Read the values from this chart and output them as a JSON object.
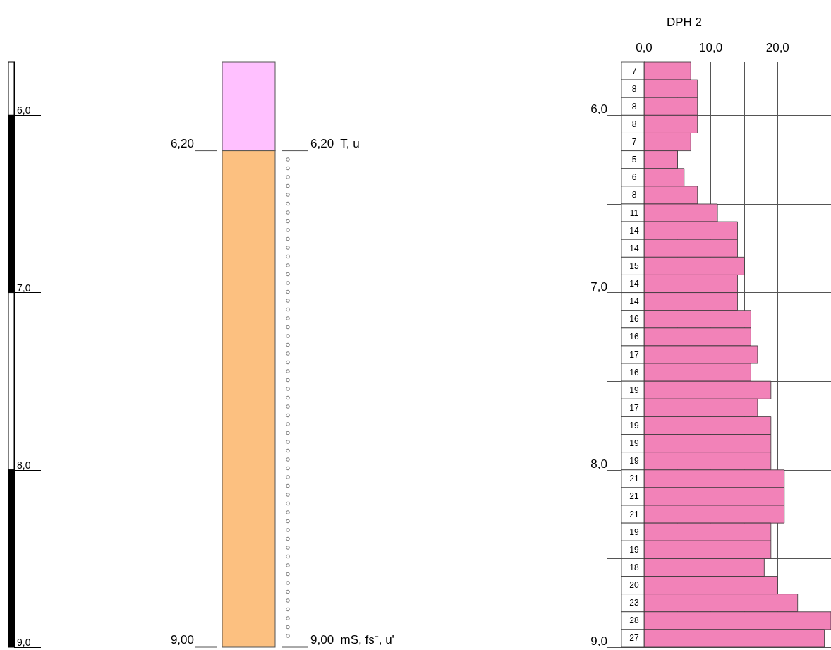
{
  "chart_data": {
    "type": "histogram",
    "orientation": "horizontal",
    "title": "DPH 2",
    "color": "#f282b8",
    "data_labels": true,
    "grid": true,
    "bins": [
      5.7,
      5.8,
      5.9,
      6.0,
      6.1,
      6.2,
      6.3,
      6.4,
      6.5,
      6.6,
      6.7,
      6.8,
      6.9,
      7.0,
      7.1,
      7.2,
      7.3,
      7.4,
      7.5,
      7.6,
      7.7,
      7.8,
      7.9,
      8.0,
      8.1,
      8.2,
      8.3,
      8.4,
      8.5,
      8.6,
      8.7,
      8.8,
      8.9,
      9.0
    ],
    "values": [
      7,
      8,
      8,
      8,
      7,
      5,
      6,
      8,
      11,
      14,
      14,
      15,
      14,
      14,
      16,
      16,
      17,
      16,
      19,
      17,
      19,
      19,
      19,
      21,
      21,
      21,
      19,
      19,
      18,
      20,
      23,
      28,
      27
    ],
    "xlim": [
      0,
      28
    ],
    "xticks": [
      {
        "value": 0,
        "label": "0,0"
      },
      {
        "value": 5,
        "label": null
      },
      {
        "value": 10,
        "label": "10,0"
      },
      {
        "value": 15,
        "label": null
      },
      {
        "value": 20,
        "label": "20,0"
      },
      {
        "value": 25,
        "label": null
      }
    ],
    "ylim": [
      9.0,
      5.7
    ],
    "yticks": [
      {
        "value": 6,
        "label": "6,0"
      },
      {
        "value": 6.5,
        "label": null
      },
      {
        "value": 7,
        "label": "7,0"
      },
      {
        "value": 7.5,
        "label": null
      },
      {
        "value": 8,
        "label": "8,0"
      },
      {
        "value": 8.5,
        "label": null
      },
      {
        "value": 9,
        "label": "9,0"
      }
    ],
    "ref_lines": [
      {
        "axis": "y",
        "value": 6.2,
        "label": "6,20"
      },
      {
        "axis": "y",
        "value": 6.2,
        "label": "6,20  T, u"
      },
      {
        "axis": "y",
        "value": 9.0,
        "label": "9,00"
      },
      {
        "axis": "y",
        "value": 9.0,
        "label": "9,00  mS, fs⁻, u'"
      }
    ]
  }
}
